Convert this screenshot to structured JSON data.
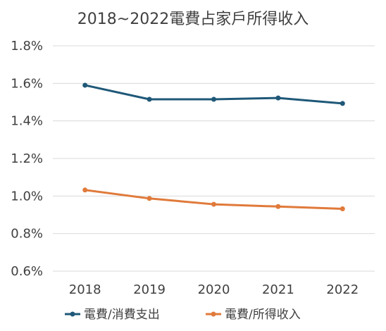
{
  "chart_data": {
    "type": "line",
    "title": "2018~2022電費占家戶所得收入",
    "xlabel": "",
    "ylabel": "",
    "categories": [
      "2018",
      "2019",
      "2020",
      "2021",
      "2022"
    ],
    "y_ticks": [
      "0.6%",
      "0.8%",
      "1.0%",
      "1.2%",
      "1.4%",
      "1.6%",
      "1.8%"
    ],
    "ylim": [
      0.006,
      0.018
    ],
    "grid": true,
    "legend_position": "bottom",
    "series": [
      {
        "name": "電費/消費支出",
        "color": "#1f5878",
        "values": [
          0.0159,
          0.01515,
          0.01515,
          0.01522,
          0.01493
        ]
      },
      {
        "name": "電費/所得收入",
        "color": "#e07a3a",
        "values": [
          0.01032,
          0.00987,
          0.00956,
          0.00944,
          0.00932
        ]
      }
    ]
  }
}
